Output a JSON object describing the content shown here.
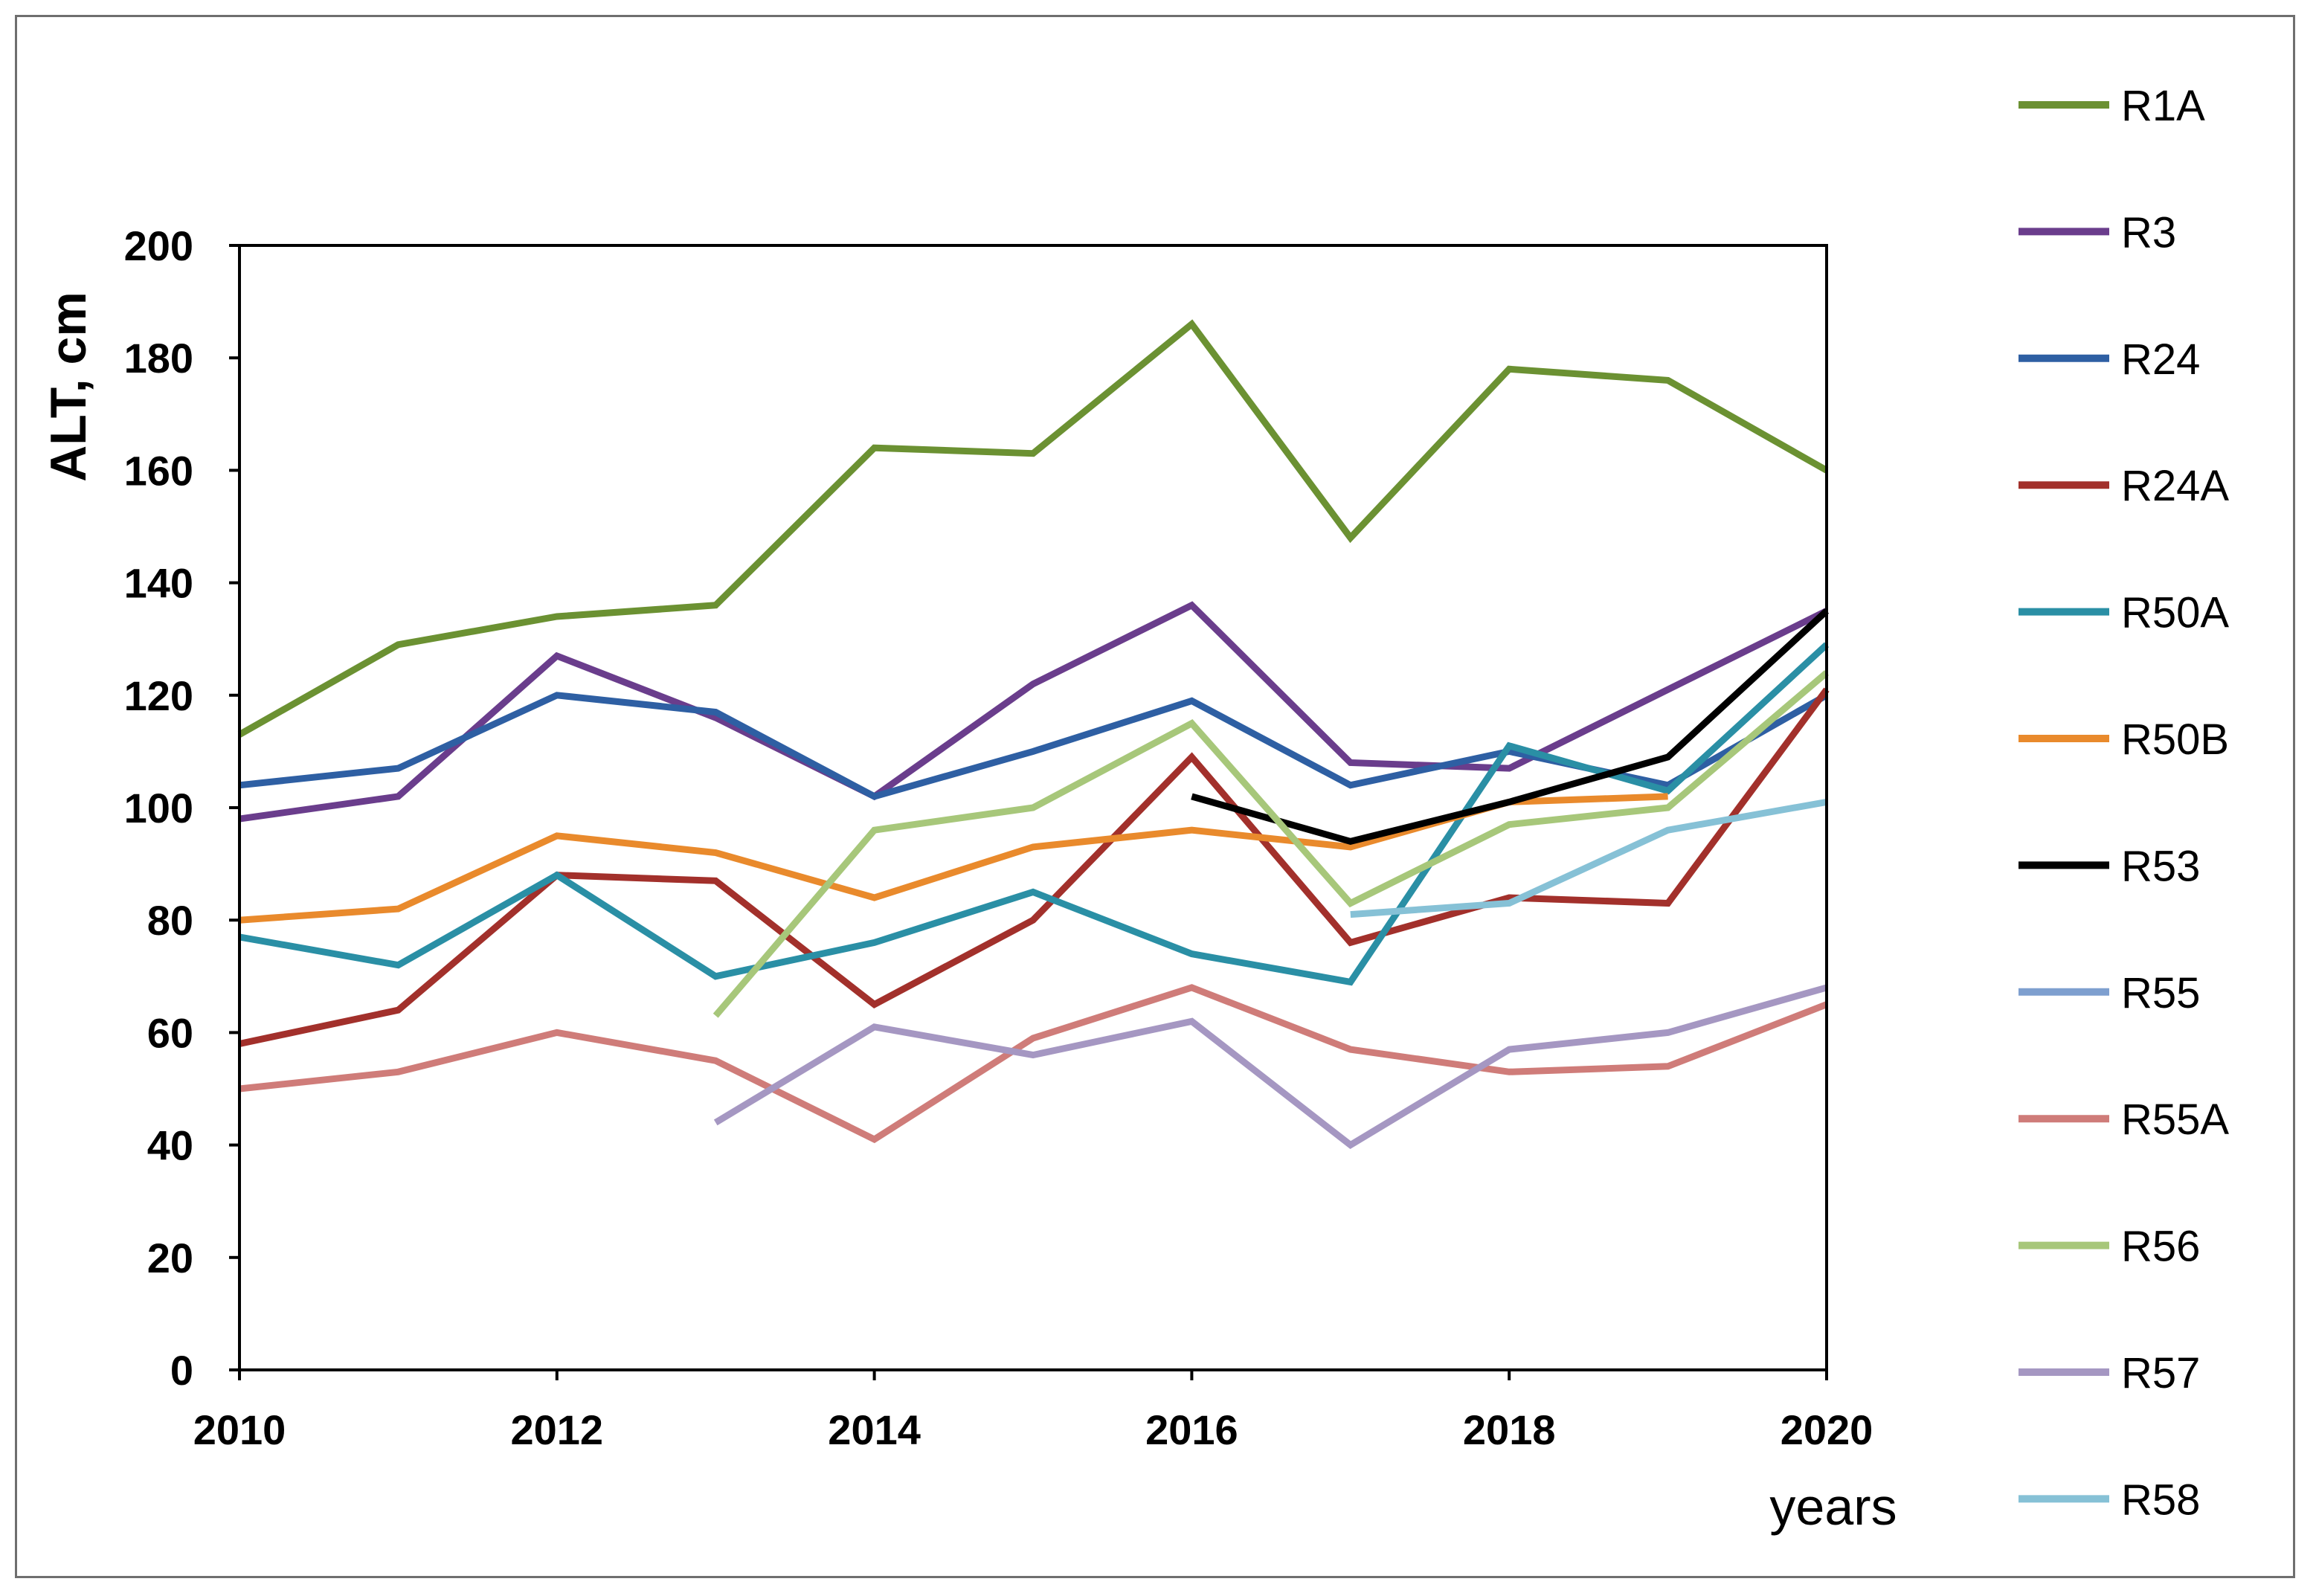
{
  "chart_data": {
    "type": "line",
    "title": "",
    "xlabel": "years",
    "ylabel": "ALT, cm",
    "xlim": [
      2010,
      2020
    ],
    "ylim": [
      0,
      200
    ],
    "x_ticks": [
      "2010",
      "2012",
      "2014",
      "2016",
      "2018",
      "2020"
    ],
    "y_ticks": [
      "0",
      "20",
      "40",
      "60",
      "80",
      "100",
      "120",
      "140",
      "160",
      "180",
      "200"
    ],
    "grid": false,
    "legend": "right",
    "x": [
      2010,
      2011,
      2012,
      2013,
      2014,
      2015,
      2016,
      2017,
      2018,
      2019,
      2020
    ],
    "series": [
      {
        "name": "R1A",
        "color": "#6b9132",
        "values": [
          113,
          129,
          134,
          136,
          164,
          163,
          186,
          148,
          178,
          176,
          160
        ]
      },
      {
        "name": "R3",
        "color": "#6a3d8c",
        "values": [
          98,
          102,
          127,
          116,
          102,
          122,
          136,
          108,
          107,
          121,
          135
        ]
      },
      {
        "name": "R24",
        "color": "#2e5fa3",
        "values": [
          104,
          107,
          120,
          117,
          102,
          110,
          119,
          104,
          110,
          104,
          120
        ]
      },
      {
        "name": "R24A",
        "color": "#a2302b",
        "values": [
          58,
          64,
          88,
          87,
          65,
          80,
          109,
          76,
          84,
          83,
          121
        ]
      },
      {
        "name": "R50A",
        "color": "#2a8fa5",
        "values": [
          77,
          72,
          88,
          70,
          76,
          85,
          74,
          69,
          111,
          103,
          129
        ]
      },
      {
        "name": "R50B",
        "color": "#e98a2c",
        "values": [
          80,
          82,
          95,
          92,
          84,
          93,
          96,
          93,
          101,
          102,
          null
        ]
      },
      {
        "name": "R53",
        "color": "#000000",
        "values": [
          null,
          null,
          null,
          null,
          null,
          null,
          102,
          94,
          101,
          109,
          135
        ]
      },
      {
        "name": "R55",
        "color": "#7e9fcf",
        "values": [
          null,
          null,
          null,
          null,
          null,
          null,
          null,
          null,
          null,
          null,
          null
        ]
      },
      {
        "name": "R55A",
        "color": "#cf7c79",
        "values": [
          50,
          53,
          60,
          55,
          41,
          59,
          68,
          57,
          53,
          54,
          65
        ]
      },
      {
        "name": "R56",
        "color": "#a7c77a",
        "values": [
          null,
          null,
          null,
          63,
          96,
          100,
          115,
          83,
          97,
          100,
          124
        ]
      },
      {
        "name": "R57",
        "color": "#a597c2",
        "values": [
          null,
          null,
          null,
          44,
          61,
          56,
          62,
          40,
          57,
          60,
          68
        ]
      },
      {
        "name": "R58",
        "color": "#86c1d6",
        "values": [
          null,
          null,
          null,
          null,
          null,
          null,
          null,
          81,
          83,
          96,
          101
        ]
      }
    ]
  }
}
